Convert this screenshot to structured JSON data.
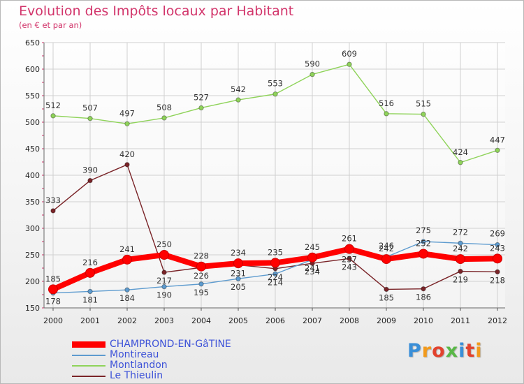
{
  "title": "Evolution des Impôts locaux par Habitant",
  "subtitle": "(en € et par an)",
  "logo": "Proxiti",
  "chart_data": {
    "type": "line",
    "categories": [
      "2000",
      "2001",
      "2002",
      "2003",
      "2004",
      "2005",
      "2006",
      "2007",
      "2008",
      "2009",
      "2010",
      "2011",
      "2012"
    ],
    "ylim": [
      150,
      650
    ],
    "yticks": [
      150,
      200,
      250,
      300,
      350,
      400,
      450,
      500,
      550,
      600,
      650
    ],
    "grid": true,
    "legend_position": "bottom-left",
    "series": [
      {
        "name": "CHAMPROND-EN-GâTINE",
        "color": "#ff0000",
        "values": [
          185,
          216,
          241,
          250,
          228,
          234,
          235,
          245,
          261,
          242,
          252,
          242,
          243
        ]
      },
      {
        "name": "Montireau",
        "color": "#5d9bcf",
        "values": [
          178,
          181,
          184,
          190,
          195,
          205,
          214,
          241,
          257,
          246,
          275,
          272,
          269
        ]
      },
      {
        "name": "Montlandon",
        "color": "#8fd35a",
        "values": [
          512,
          507,
          497,
          508,
          527,
          542,
          553,
          590,
          609,
          516,
          515,
          424,
          447
        ]
      },
      {
        "name": "Le Thieulin",
        "color": "#7a2428",
        "values": [
          333,
          390,
          420,
          217,
          226,
          231,
          224,
          234,
          243,
          185,
          186,
          219,
          218
        ]
      }
    ]
  }
}
